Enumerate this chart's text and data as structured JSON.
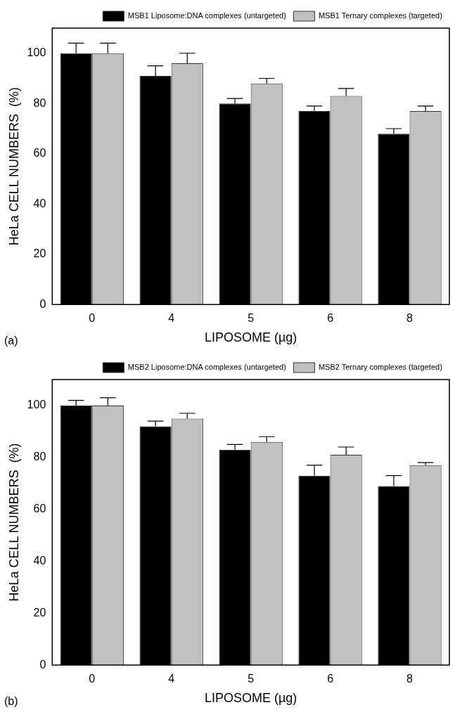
{
  "chart_data": [
    {
      "type": "bar",
      "xlabel": "LIPOSOME (µg)",
      "ylabel": "HeLa CELL NUMBERS  (%)",
      "categories": [
        "0",
        "4",
        "5",
        "6",
        "8"
      ],
      "series": [
        {
          "name": "MSB1 Liposome:DNA complexes (untargeted)",
          "color": "#000000",
          "values": [
            100,
            91,
            80,
            77,
            68
          ],
          "errors": [
            [
              100,
              104
            ],
            [
              91,
              95
            ],
            [
              80,
              82
            ],
            [
              77,
              79
            ],
            [
              68,
              70
            ]
          ]
        },
        {
          "name": "MSB1 Ternary complexes (targeted)",
          "color": "#c0c0c0",
          "values": [
            100,
            96,
            88,
            83,
            77
          ],
          "errors": [
            [
              100,
              104
            ],
            [
              96,
              100
            ],
            [
              88,
              90
            ],
            [
              83,
              86
            ],
            [
              77,
              79
            ]
          ]
        }
      ],
      "ylim": [
        0,
        110
      ],
      "yticks": [
        0,
        20,
        40,
        60,
        80,
        100
      ],
      "legend": "top right",
      "annotations": [
        "(a)"
      ]
    },
    {
      "type": "bar",
      "xlabel": "LIPOSOME (µg)",
      "ylabel": "HeLa CELL NUMBERS  (%)",
      "categories": [
        "0",
        "4",
        "5",
        "6",
        "8"
      ],
      "series": [
        {
          "name": "MSB2 Liposome:DNA complexes (untargeted)",
          "color": "#000000",
          "values": [
            100,
            92,
            83,
            73,
            69
          ],
          "errors": [
            [
              100,
              102
            ],
            [
              92,
              94
            ],
            [
              83,
              85
            ],
            [
              73,
              77
            ],
            [
              69,
              73
            ]
          ]
        },
        {
          "name": "MSB2 Ternary complexes (targeted)",
          "color": "#c0c0c0",
          "values": [
            100,
            95,
            86,
            81,
            77
          ],
          "errors": [
            [
              100,
              103
            ],
            [
              95,
              97
            ],
            [
              86,
              88
            ],
            [
              81,
              84
            ],
            [
              77,
              78
            ]
          ]
        }
      ],
      "ylim": [
        0,
        110
      ],
      "yticks": [
        0,
        20,
        40,
        60,
        80,
        100
      ],
      "legend": "top right",
      "annotations": [
        "(b)"
      ]
    }
  ]
}
